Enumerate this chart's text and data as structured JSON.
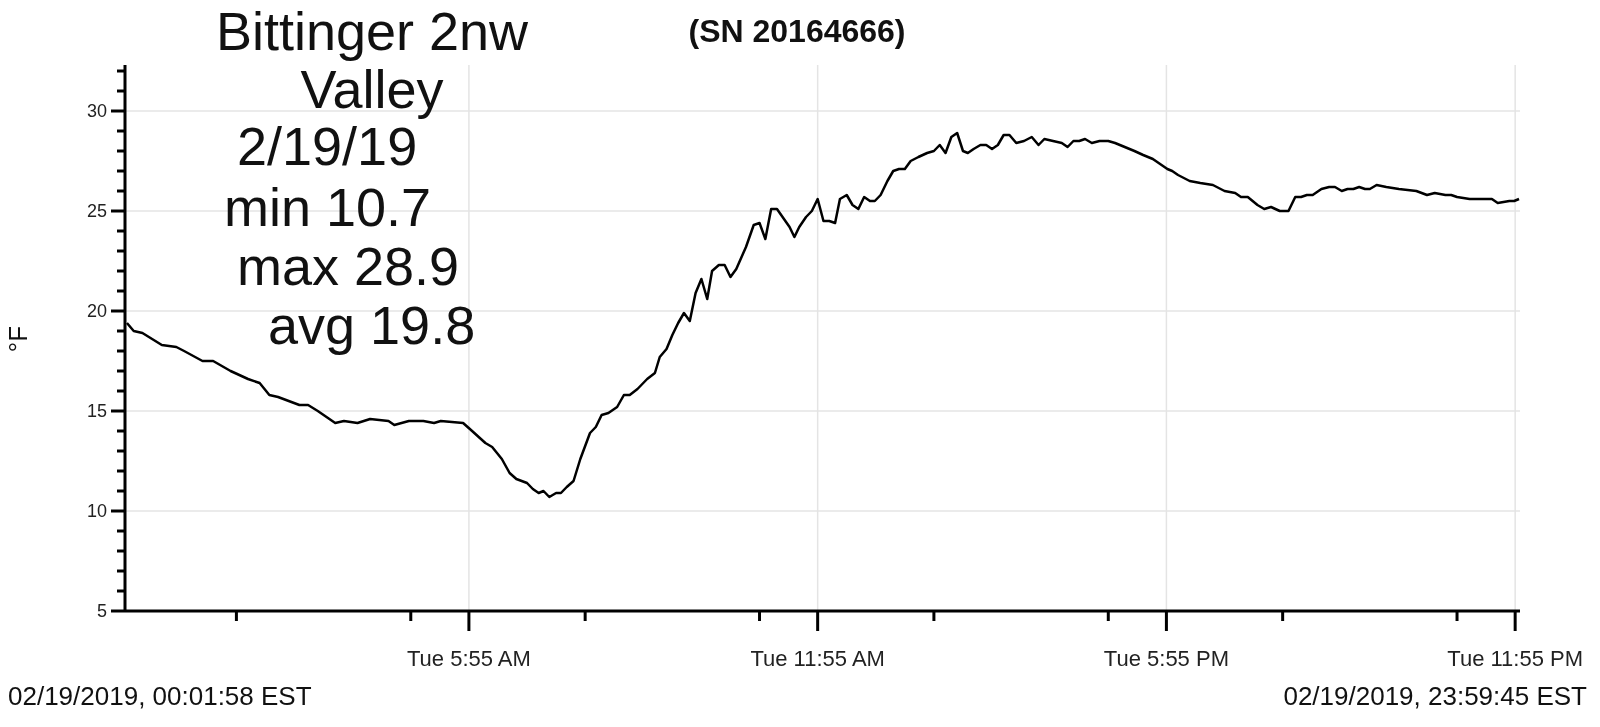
{
  "chart_data": {
    "type": "line",
    "title": "Bittinger 2nw Valley",
    "subtitle": "(SN 20164666)",
    "ylabel": "°F",
    "annotations": [
      "2/19/19",
      "min 10.7",
      "max 28.9",
      "avg 19.8",
      "02/19/2019, 00:01:58 EST",
      "02/19/2019, 23:59:45 EST"
    ],
    "color": "#000000",
    "x": [
      "2019-02-19T00:02",
      "2019-02-19T00:09",
      "2019-02-19T00:18",
      "2019-02-19T00:38",
      "2019-02-19T00:53",
      "2019-02-19T01:01",
      "2019-02-19T01:20",
      "2019-02-19T01:31",
      "2019-02-19T01:49",
      "2019-02-19T02:07",
      "2019-02-19T02:19",
      "2019-02-19T02:29",
      "2019-02-19T02:38",
      "2019-02-19T03:00",
      "2019-02-19T03:09",
      "2019-02-19T03:19",
      "2019-02-19T03:37",
      "2019-02-19T03:46",
      "2019-02-19T04:00",
      "2019-02-19T04:13",
      "2019-02-19T04:32",
      "2019-02-19T04:38",
      "2019-02-19T04:53",
      "2019-02-19T05:08",
      "2019-02-19T05:19",
      "2019-02-19T05:26",
      "2019-02-19T05:49",
      "2019-02-19T05:56",
      "2019-02-19T06:12",
      "2019-02-19T06:19",
      "2019-02-19T06:29",
      "2019-02-19T06:37",
      "2019-02-19T06:44",
      "2019-02-19T06:55",
      "2019-02-19T07:01",
      "2019-02-19T07:07",
      "2019-02-19T07:12",
      "2019-02-19T07:18",
      "2019-02-19T07:25",
      "2019-02-19T07:30",
      "2019-02-19T07:36",
      "2019-02-19T07:43",
      "2019-02-19T07:50",
      "2019-02-19T08:00",
      "2019-02-19T08:06",
      "2019-02-19T08:12",
      "2019-02-19T08:19",
      "2019-02-19T08:28",
      "2019-02-19T08:35",
      "2019-02-19T08:41",
      "2019-02-19T08:49",
      "2019-02-19T08:59",
      "2019-02-19T09:07",
      "2019-02-19T09:12",
      "2019-02-19T09:19",
      "2019-02-19T09:25",
      "2019-02-19T09:31",
      "2019-02-19T09:37",
      "2019-02-19T09:43",
      "2019-02-19T09:49",
      "2019-02-19T09:55",
      "2019-02-19T10:01",
      "2019-02-19T10:06",
      "2019-02-19T10:13",
      "2019-02-19T10:19",
      "2019-02-19T10:25",
      "2019-02-19T10:31",
      "2019-02-19T10:41",
      "2019-02-19T10:49",
      "2019-02-19T10:55",
      "2019-02-19T11:01",
      "2019-02-19T11:07",
      "2019-02-19T11:13",
      "2019-02-19T11:26",
      "2019-02-19T11:31",
      "2019-02-19T11:36",
      "2019-02-19T11:43",
      "2019-02-19T11:49",
      "2019-02-19T11:55",
      "2019-02-19T12:01",
      "2019-02-19T12:07",
      "2019-02-19T12:13",
      "2019-02-19T12:18",
      "2019-02-19T12:25",
      "2019-02-19T12:31",
      "2019-02-19T12:37",
      "2019-02-19T12:43",
      "2019-02-19T12:49",
      "2019-02-19T12:54",
      "2019-02-19T13:00",
      "2019-02-19T13:07",
      "2019-02-19T13:13",
      "2019-02-19T13:19",
      "2019-02-19T13:25",
      "2019-02-19T13:31",
      "2019-02-19T13:39",
      "2019-02-19T13:48",
      "2019-02-19T13:55",
      "2019-02-19T14:01",
      "2019-02-19T14:07",
      "2019-02-19T14:13",
      "2019-02-19T14:19",
      "2019-02-19T14:25",
      "2019-02-19T14:30",
      "2019-02-19T14:36",
      "2019-02-19T14:43",
      "2019-02-19T14:49",
      "2019-02-19T14:55",
      "2019-02-19T15:01",
      "2019-02-19T15:07",
      "2019-02-19T15:13",
      "2019-02-19T15:20",
      "2019-02-19T15:28",
      "2019-02-19T15:36",
      "2019-02-19T15:43",
      "2019-02-19T15:49",
      "2019-02-19T15:58",
      "2019-02-19T16:07",
      "2019-02-19T16:13",
      "2019-02-19T16:19",
      "2019-02-19T16:25",
      "2019-02-19T16:31",
      "2019-02-19T16:38",
      "2019-02-19T16:46",
      "2019-02-19T16:55",
      "2019-02-19T17:02",
      "2019-02-19T17:12",
      "2019-02-19T17:22",
      "2019-02-19T17:31",
      "2019-02-19T17:41",
      "2019-02-19T17:50",
      "2019-02-19T17:56",
      "2019-02-19T18:01",
      "2019-02-19T18:07",
      "2019-02-19T18:19",
      "2019-02-19T18:30",
      "2019-02-19T18:43",
      "2019-02-19T18:55",
      "2019-02-19T19:06",
      "2019-02-19T19:12",
      "2019-02-19T19:19",
      "2019-02-19T19:29",
      "2019-02-19T19:36",
      "2019-02-19T19:43",
      "2019-02-19T19:52",
      "2019-02-19T20:01",
      "2019-02-19T20:08",
      "2019-02-19T20:14",
      "2019-02-19T20:20",
      "2019-02-19T20:26",
      "2019-02-19T20:35",
      "2019-02-19T20:43",
      "2019-02-19T20:49",
      "2019-02-19T20:56",
      "2019-02-19T21:02",
      "2019-02-19T21:08",
      "2019-02-19T21:14",
      "2019-02-19T21:20",
      "2019-02-19T21:25",
      "2019-02-19T21:32",
      "2019-02-19T21:42",
      "2019-02-19T21:55",
      "2019-02-19T22:13",
      "2019-02-19T22:24",
      "2019-02-19T22:32",
      "2019-02-19T22:43",
      "2019-02-19T22:49",
      "2019-02-19T22:55",
      "2019-02-19T23:08",
      "2019-02-19T23:19",
      "2019-02-19T23:25",
      "2019-02-19T23:31",
      "2019-02-19T23:37",
      "2019-02-19T23:49",
      "2019-02-19T23:54",
      "2019-02-19T23:59"
    ],
    "values": [
      19.4,
      19.0,
      18.9,
      18.3,
      18.2,
      18.0,
      17.5,
      17.5,
      17.0,
      16.6,
      16.4,
      15.8,
      15.7,
      15.3,
      15.3,
      15.0,
      14.4,
      14.5,
      14.4,
      14.6,
      14.5,
      14.3,
      14.5,
      14.5,
      14.4,
      14.5,
      14.4,
      14.1,
      13.4,
      13.2,
      12.6,
      11.9,
      11.6,
      11.4,
      11.1,
      10.9,
      11.0,
      10.7,
      10.9,
      10.9,
      11.2,
      11.5,
      12.6,
      13.9,
      14.2,
      14.8,
      14.9,
      15.2,
      15.8,
      15.8,
      16.1,
      16.6,
      16.9,
      17.7,
      18.1,
      18.8,
      19.4,
      19.9,
      19.5,
      20.9,
      21.6,
      20.6,
      22.0,
      22.3,
      22.3,
      21.7,
      22.1,
      23.2,
      24.3,
      24.4,
      23.6,
      25.1,
      25.1,
      24.2,
      23.7,
      24.2,
      24.7,
      25.0,
      25.6,
      24.5,
      24.5,
      24.4,
      25.6,
      25.8,
      25.3,
      25.1,
      25.7,
      25.5,
      25.5,
      25.8,
      26.5,
      27.0,
      27.1,
      27.1,
      27.5,
      27.7,
      27.9,
      28.0,
      28.3,
      27.9,
      28.7,
      28.9,
      28.0,
      27.9,
      28.1,
      28.3,
      28.3,
      28.1,
      28.3,
      28.8,
      28.8,
      28.4,
      28.5,
      28.7,
      28.3,
      28.6,
      28.5,
      28.4,
      28.2,
      28.5,
      28.5,
      28.6,
      28.4,
      28.5,
      28.5,
      28.4,
      28.2,
      28.0,
      27.8,
      27.6,
      27.3,
      27.1,
      27.0,
      26.8,
      26.5,
      26.4,
      26.3,
      26.0,
      25.9,
      25.7,
      25.7,
      25.3,
      25.1,
      25.2,
      25.0,
      25.0,
      25.7,
      25.7,
      25.8,
      25.8,
      26.1,
      26.2,
      26.2,
      26.0,
      26.1,
      26.1,
      26.2,
      26.1,
      26.1,
      26.3,
      26.2,
      26.1,
      26.0,
      25.8,
      25.9,
      25.8,
      25.8,
      25.7,
      25.6,
      25.6,
      25.6,
      25.6,
      25.4,
      25.5,
      25.5,
      25.6
    ],
    "xlim": [
      "2019-02-19T00:00",
      "2019-02-20T00:00"
    ],
    "xticks": [
      {
        "value": "2019-02-19T01:55",
        "label": null
      },
      {
        "value": "2019-02-19T04:55",
        "label": null
      },
      {
        "value": "2019-02-19T05:55",
        "label": "Tue 5:55 AM"
      },
      {
        "value": "2019-02-19T07:55",
        "label": null
      },
      {
        "value": "2019-02-19T10:55",
        "label": null
      },
      {
        "value": "2019-02-19T11:55",
        "label": "Tue 11:55 AM"
      },
      {
        "value": "2019-02-19T13:55",
        "label": null
      },
      {
        "value": "2019-02-19T16:55",
        "label": null
      },
      {
        "value": "2019-02-19T17:55",
        "label": "Tue 5:55 PM"
      },
      {
        "value": "2019-02-19T19:55",
        "label": null
      },
      {
        "value": "2019-02-19T22:55",
        "label": null
      },
      {
        "value": "2019-02-19T23:55",
        "label": "Tue 11:55 PM"
      }
    ],
    "ylim": [
      5,
      32.3
    ],
    "yticks": [
      5,
      {
        "value": 6,
        "label": null
      },
      {
        "value": 7,
        "label": null
      },
      {
        "value": 8,
        "label": null
      },
      {
        "value": 9,
        "label": null
      },
      10,
      {
        "value": 11,
        "label": null
      },
      {
        "value": 12,
        "label": null
      },
      {
        "value": 13,
        "label": null
      },
      {
        "value": 14,
        "label": null
      },
      15,
      {
        "value": 16,
        "label": null
      },
      {
        "value": 17,
        "label": null
      },
      {
        "value": 18,
        "label": null
      },
      {
        "value": 19,
        "label": null
      },
      20,
      {
        "value": 21,
        "label": null
      },
      {
        "value": 22,
        "label": null
      },
      {
        "value": 23,
        "label": null
      },
      {
        "value": 24,
        "label": null
      },
      25,
      {
        "value": 26,
        "label": null
      },
      {
        "value": 27,
        "label": null
      },
      {
        "value": 28,
        "label": null
      },
      {
        "value": 29,
        "label": null
      },
      30,
      {
        "value": 31,
        "label": null
      },
      {
        "value": 32,
        "label": null
      }
    ],
    "grid": true
  }
}
